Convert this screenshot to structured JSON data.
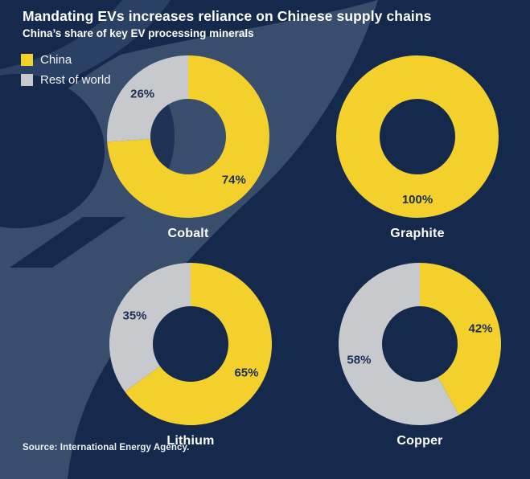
{
  "header": {
    "title": "Mandating EVs increases reliance on Chinese supply chains",
    "subtitle": "China’s share of key EV processing minerals"
  },
  "legend": {
    "items": [
      {
        "label": "China",
        "color": "#f4d02d"
      },
      {
        "label": "Rest of world",
        "color": "#c8c9cc"
      }
    ]
  },
  "source": "Source: International Energy Agency.",
  "colors": {
    "background": "#15294c",
    "swoosh": "#394e6d",
    "corner_band": "#2b4065",
    "china": "#f4d02d",
    "rest_of_world": "#c8c9cc",
    "slice_label_text": "#1b3054",
    "text": "#ffffff"
  },
  "chart_data": {
    "type": "pie",
    "variant": "donut",
    "title": "Mandating EVs increases reliance on Chinese supply chains",
    "subtitle": "China’s share of key EV processing minerals",
    "legend_entries": [
      "China",
      "Rest of world"
    ],
    "legend_position": "top-left",
    "value_labels": "percent, shown on slices",
    "layout": "2x2 grid",
    "series_names": [
      "China",
      "Rest of world"
    ],
    "charts": [
      {
        "category": "Cobalt",
        "china_pct": 74,
        "rest_of_world_pct": 26
      },
      {
        "category": "Graphite",
        "china_pct": 100,
        "rest_of_world_pct": 0
      },
      {
        "category": "Lithium",
        "china_pct": 65,
        "rest_of_world_pct": 35
      },
      {
        "category": "Copper",
        "china_pct": 42,
        "rest_of_world_pct": 58
      }
    ]
  }
}
